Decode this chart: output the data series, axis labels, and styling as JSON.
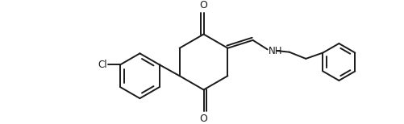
{
  "line_color": "#1a1a1a",
  "bg_color": "#ffffff",
  "lw": 1.4,
  "figsize": [
    5.01,
    1.54
  ],
  "dpi": 100,
  "xlim": [
    0,
    501
  ],
  "ylim": [
    0,
    154
  ]
}
